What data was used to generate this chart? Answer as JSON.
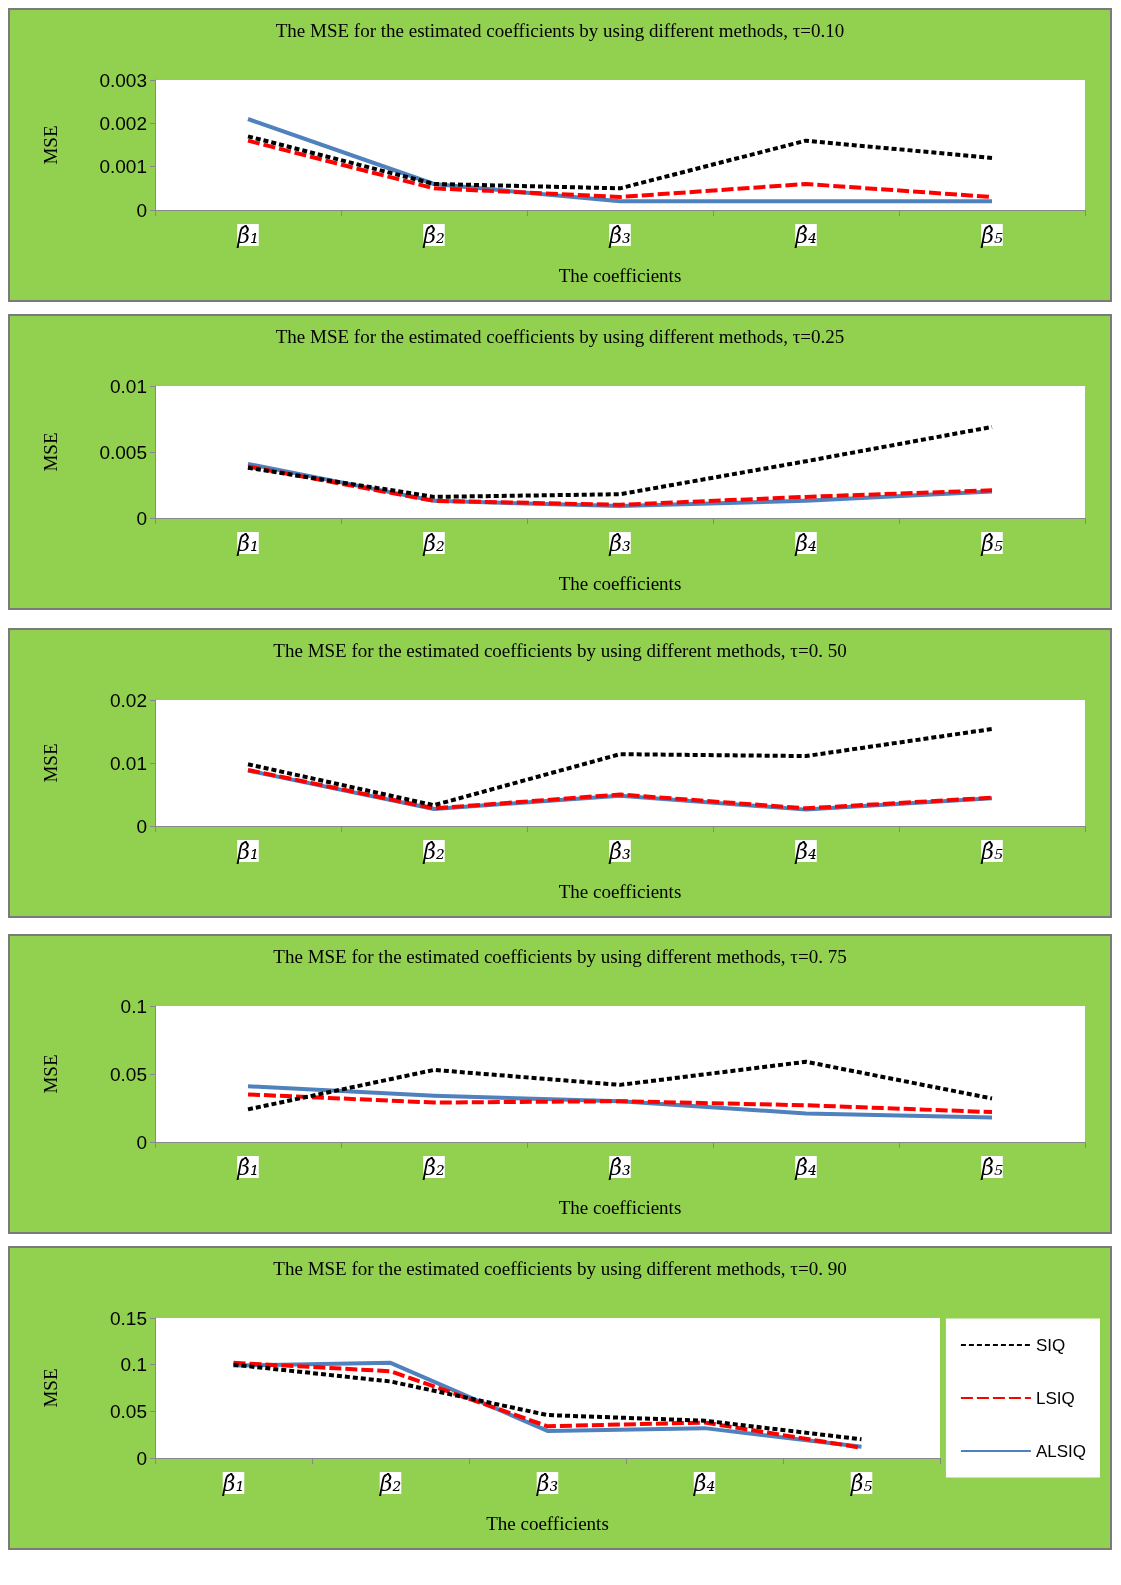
{
  "chart_data": [
    {
      "type": "line",
      "title": "The MSE for the estimated coefficients by using different methods, τ=0.10",
      "xlabel": "The coefficients",
      "ylabel": "MSE",
      "categories": [
        "β̂₁",
        "β̂₂",
        "β̂₃",
        "β̂₄",
        "β̂₅"
      ],
      "ylim": [
        0,
        0.003
      ],
      "yticks": [
        0,
        0.001,
        0.002,
        0.003
      ],
      "grid": false,
      "legend": false,
      "marker": "none",
      "series": [
        {
          "color": "#000000",
          "line_style": "dashed",
          "values": [
            0.0017,
            0.0006,
            0.0005,
            0.0016,
            0.0012
          ]
        },
        {
          "color": "#ff0000",
          "line_style": "dashed",
          "values": [
            0.0016,
            0.0005,
            0.0003,
            0.0006,
            0.0003
          ]
        },
        {
          "color": "#4f81bd",
          "line_style": "solid",
          "values": [
            0.0021,
            0.0006,
            0.0002,
            0.0002,
            0.0002
          ]
        }
      ]
    },
    {
      "type": "line",
      "title": "The MSE for the estimated coefficients by using different methods, τ=0.25",
      "xlabel": "The coefficients",
      "ylabel": "MSE",
      "categories": [
        "β̂₁",
        "β̂₂",
        "β̂₃",
        "β̂₄",
        "β̂₅"
      ],
      "ylim": [
        0,
        0.01
      ],
      "yticks": [
        0,
        0.005,
        0.01
      ],
      "grid": false,
      "legend": false,
      "marker": "none",
      "series": [
        {
          "color": "#000000",
          "line_style": "dashed",
          "values": [
            0.0038,
            0.0016,
            0.0018,
            0.0043,
            0.0069
          ]
        },
        {
          "color": "#ff0000",
          "line_style": "dashed",
          "values": [
            0.0039,
            0.0013,
            0.001,
            0.0016,
            0.0021
          ]
        },
        {
          "color": "#4f81bd",
          "line_style": "solid",
          "values": [
            0.0041,
            0.0013,
            0.0009,
            0.0013,
            0.002
          ]
        }
      ]
    },
    {
      "type": "line",
      "title": "The MSE for the estimated coefficients by using different methods, τ=0. 50",
      "xlabel": "The coefficients",
      "ylabel": "MSE",
      "categories": [
        "β̂₁",
        "β̂₂",
        "β̂₃",
        "β̂₄",
        "β̂₅"
      ],
      "ylim": [
        0,
        0.02
      ],
      "yticks": [
        0,
        0.01,
        0.02
      ],
      "grid": false,
      "legend": false,
      "marker": "none",
      "series": [
        {
          "color": "#000000",
          "line_style": "dashed",
          "values": [
            0.0098,
            0.0033,
            0.0114,
            0.0111,
            0.0154
          ]
        },
        {
          "color": "#ff0000",
          "line_style": "dashed",
          "values": [
            0.0089,
            0.0028,
            0.005,
            0.0028,
            0.0045
          ]
        },
        {
          "color": "#4f81bd",
          "line_style": "solid",
          "values": [
            0.0088,
            0.0027,
            0.0048,
            0.0026,
            0.0044
          ]
        }
      ]
    },
    {
      "type": "line",
      "title": "The MSE for the estimated coefficients by using different methods, τ=0. 75",
      "xlabel": "The coefficients",
      "ylabel": "MSE",
      "categories": [
        "β̂₁",
        "β̂₂",
        "β̂₃",
        "β̂₄",
        "β̂₅"
      ],
      "ylim": [
        0,
        0.1
      ],
      "yticks": [
        0,
        0.05,
        0.1
      ],
      "grid": false,
      "legend": false,
      "marker": "none",
      "series": [
        {
          "color": "#000000",
          "line_style": "dashed",
          "values": [
            0.024,
            0.053,
            0.042,
            0.059,
            0.032
          ]
        },
        {
          "color": "#ff0000",
          "line_style": "dashed",
          "values": [
            0.035,
            0.029,
            0.03,
            0.027,
            0.022
          ]
        },
        {
          "color": "#4f81bd",
          "line_style": "solid",
          "values": [
            0.041,
            0.034,
            0.03,
            0.021,
            0.018
          ]
        }
      ]
    },
    {
      "type": "line",
      "title": "The MSE for the estimated coefficients by using different methods, τ=0. 90",
      "xlabel": "The coefficients",
      "ylabel": "MSE",
      "categories": [
        "β̂₁",
        "β̂₂",
        "β̂₃",
        "β̂₄",
        "β̂₅"
      ],
      "ylim": [
        0,
        0.15
      ],
      "yticks": [
        0,
        0.05,
        0.1,
        0.15
      ],
      "grid": false,
      "legend": "right",
      "marker": "none",
      "series": [
        {
          "name": "SIQ",
          "color": "#000000",
          "line_style": "dashed",
          "values": [
            0.1,
            0.082,
            0.046,
            0.04,
            0.02
          ]
        },
        {
          "name": "LSIQ",
          "color": "#ff0000",
          "line_style": "dashed",
          "values": [
            0.102,
            0.093,
            0.034,
            0.038,
            0.011
          ]
        },
        {
          "name": "ALSIQ",
          "color": "#4f81bd",
          "line_style": "solid",
          "values": [
            0.099,
            0.102,
            0.029,
            0.032,
            0.012
          ]
        }
      ]
    }
  ]
}
